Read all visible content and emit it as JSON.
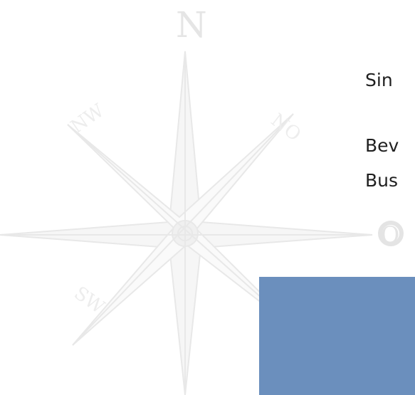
{
  "compass": {
    "north_letter": "N",
    "northwest_label": "NW",
    "northeast_label": "NO",
    "southwest_label": "SW",
    "east_ornament": "O",
    "color": "#e7e7e7"
  },
  "content": {
    "lines": [
      "Sin",
      "Bev",
      "Bus"
    ]
  },
  "block": {
    "color": "#6b8fbd"
  }
}
